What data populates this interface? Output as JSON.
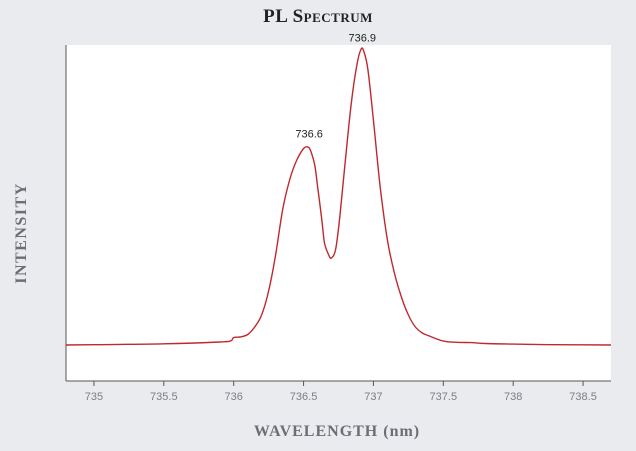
{
  "chart_data": {
    "type": "line",
    "title": "PL Spectrum",
    "xlabel": "WAVELENGTH (nm)",
    "ylabel": "INTENSITY",
    "xlim": [
      734.8,
      738.7
    ],
    "ylim": [
      -0.12,
      1.0
    ],
    "grid": false,
    "x_ticks": [
      735,
      735.5,
      736,
      736.5,
      737,
      737.5,
      738,
      738.5
    ],
    "x_tick_labels": [
      "735",
      "735.5",
      "736",
      "736.5",
      "737",
      "737.5",
      "738",
      "738.5"
    ],
    "annotations": [
      {
        "text": "736.6",
        "x": 736.54,
        "y": 0.665
      },
      {
        "text": "736.9",
        "x": 736.92,
        "y": 0.985
      }
    ],
    "series": [
      {
        "color": "#c0282d",
        "x": [
          734.8,
          735.0,
          735.5,
          735.9,
          735.98,
          736.0,
          736.05,
          736.1,
          736.15,
          736.2,
          736.25,
          736.3,
          736.35,
          736.4,
          736.45,
          736.5,
          736.53,
          736.55,
          736.58,
          736.6,
          736.63,
          736.65,
          736.68,
          736.7,
          736.73,
          736.76,
          736.8,
          736.84,
          736.88,
          736.91,
          736.93,
          736.96,
          737.0,
          737.05,
          737.1,
          737.15,
          737.2,
          737.25,
          737.3,
          737.35,
          737.4,
          737.5,
          737.6,
          737.7,
          737.8,
          738.0,
          738.3,
          738.7
        ],
        "y": [
          0.0,
          0.001,
          0.004,
          0.01,
          0.014,
          0.025,
          0.027,
          0.035,
          0.06,
          0.1,
          0.18,
          0.3,
          0.45,
          0.55,
          0.615,
          0.655,
          0.66,
          0.648,
          0.6,
          0.53,
          0.42,
          0.34,
          0.3,
          0.29,
          0.32,
          0.43,
          0.62,
          0.8,
          0.93,
          0.985,
          0.98,
          0.92,
          0.75,
          0.52,
          0.35,
          0.24,
          0.16,
          0.1,
          0.06,
          0.04,
          0.03,
          0.013,
          0.009,
          0.008,
          0.005,
          0.003,
          0.001,
          0.0
        ]
      }
    ]
  }
}
